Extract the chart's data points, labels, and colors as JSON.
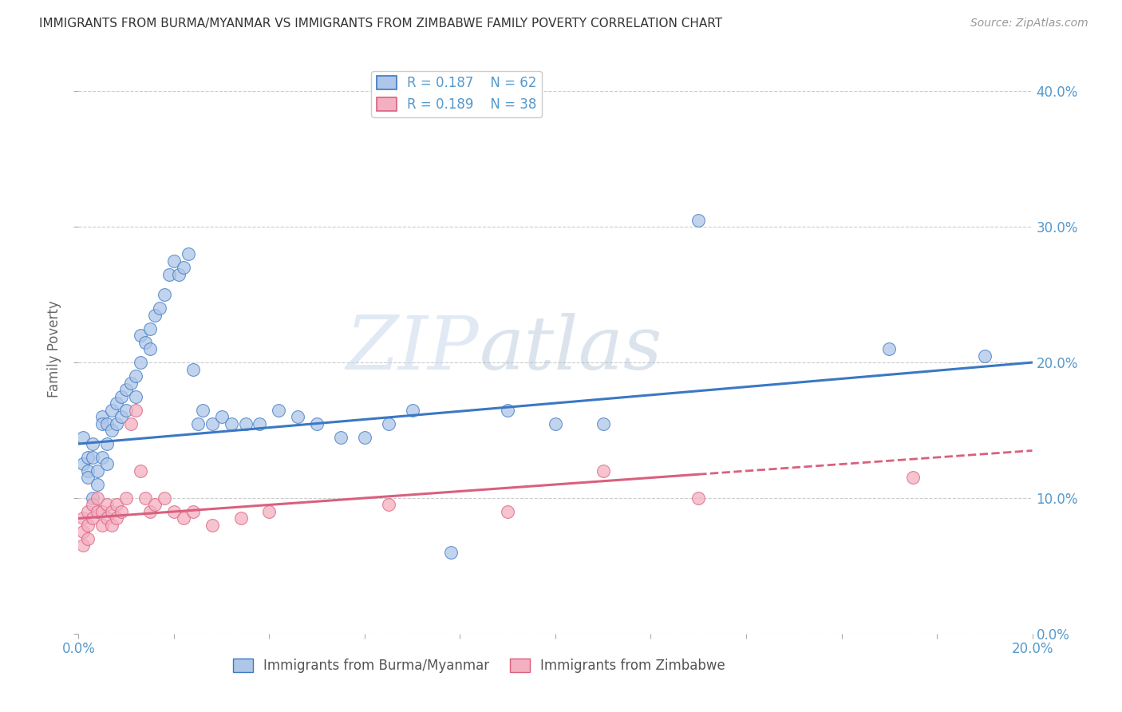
{
  "title": "IMMIGRANTS FROM BURMA/MYANMAR VS IMMIGRANTS FROM ZIMBABWE FAMILY POVERTY CORRELATION CHART",
  "source": "Source: ZipAtlas.com",
  "xlabel_blue": "Immigrants from Burma/Myanmar",
  "xlabel_pink": "Immigrants from Zimbabwe",
  "ylabel": "Family Poverty",
  "xlim": [
    0.0,
    0.2
  ],
  "ylim": [
    0.0,
    0.42
  ],
  "xticks": [
    0.0,
    0.02,
    0.04,
    0.06,
    0.08,
    0.1,
    0.12,
    0.14,
    0.16,
    0.18,
    0.2
  ],
  "yticks": [
    0.0,
    0.1,
    0.2,
    0.3,
    0.4
  ],
  "legend_R_blue": "0.187",
  "legend_N_blue": "62",
  "legend_R_pink": "0.189",
  "legend_N_pink": "38",
  "blue_color": "#aec6e8",
  "pink_color": "#f4afc0",
  "line_blue": "#3b78c3",
  "line_pink": "#d9607e",
  "title_color": "#333333",
  "axis_color": "#5599cc",
  "watermark_left": "ZIP",
  "watermark_right": "atlas",
  "blue_line_x0": 0.0,
  "blue_line_y0": 0.14,
  "blue_line_x1": 0.2,
  "blue_line_y1": 0.2,
  "pink_line_x0": 0.0,
  "pink_line_y0": 0.085,
  "pink_line_x1": 0.2,
  "pink_line_y1": 0.135,
  "blue_scatter_x": [
    0.001,
    0.001,
    0.002,
    0.002,
    0.002,
    0.003,
    0.003,
    0.003,
    0.004,
    0.004,
    0.005,
    0.005,
    0.005,
    0.006,
    0.006,
    0.006,
    0.007,
    0.007,
    0.008,
    0.008,
    0.009,
    0.009,
    0.01,
    0.01,
    0.011,
    0.012,
    0.012,
    0.013,
    0.013,
    0.014,
    0.015,
    0.015,
    0.016,
    0.017,
    0.018,
    0.019,
    0.02,
    0.021,
    0.022,
    0.023,
    0.024,
    0.025,
    0.026,
    0.028,
    0.03,
    0.032,
    0.035,
    0.038,
    0.042,
    0.046,
    0.05,
    0.055,
    0.06,
    0.065,
    0.07,
    0.078,
    0.09,
    0.1,
    0.11,
    0.13,
    0.17,
    0.19
  ],
  "blue_scatter_y": [
    0.145,
    0.125,
    0.13,
    0.12,
    0.115,
    0.14,
    0.13,
    0.1,
    0.12,
    0.11,
    0.16,
    0.155,
    0.13,
    0.155,
    0.14,
    0.125,
    0.165,
    0.15,
    0.17,
    0.155,
    0.175,
    0.16,
    0.18,
    0.165,
    0.185,
    0.19,
    0.175,
    0.22,
    0.2,
    0.215,
    0.225,
    0.21,
    0.235,
    0.24,
    0.25,
    0.265,
    0.275,
    0.265,
    0.27,
    0.28,
    0.195,
    0.155,
    0.165,
    0.155,
    0.16,
    0.155,
    0.155,
    0.155,
    0.165,
    0.16,
    0.155,
    0.145,
    0.145,
    0.155,
    0.165,
    0.06,
    0.165,
    0.155,
    0.155,
    0.305,
    0.21,
    0.205
  ],
  "pink_scatter_x": [
    0.001,
    0.001,
    0.001,
    0.002,
    0.002,
    0.002,
    0.003,
    0.003,
    0.004,
    0.004,
    0.005,
    0.005,
    0.006,
    0.006,
    0.007,
    0.007,
    0.008,
    0.008,
    0.009,
    0.01,
    0.011,
    0.012,
    0.013,
    0.014,
    0.015,
    0.016,
    0.018,
    0.02,
    0.022,
    0.024,
    0.028,
    0.034,
    0.04,
    0.065,
    0.09,
    0.11,
    0.13,
    0.175
  ],
  "pink_scatter_y": [
    0.085,
    0.075,
    0.065,
    0.09,
    0.08,
    0.07,
    0.095,
    0.085,
    0.1,
    0.09,
    0.09,
    0.08,
    0.095,
    0.085,
    0.09,
    0.08,
    0.095,
    0.085,
    0.09,
    0.1,
    0.155,
    0.165,
    0.12,
    0.1,
    0.09,
    0.095,
    0.1,
    0.09,
    0.085,
    0.09,
    0.08,
    0.085,
    0.09,
    0.095,
    0.09,
    0.12,
    0.1,
    0.115
  ]
}
